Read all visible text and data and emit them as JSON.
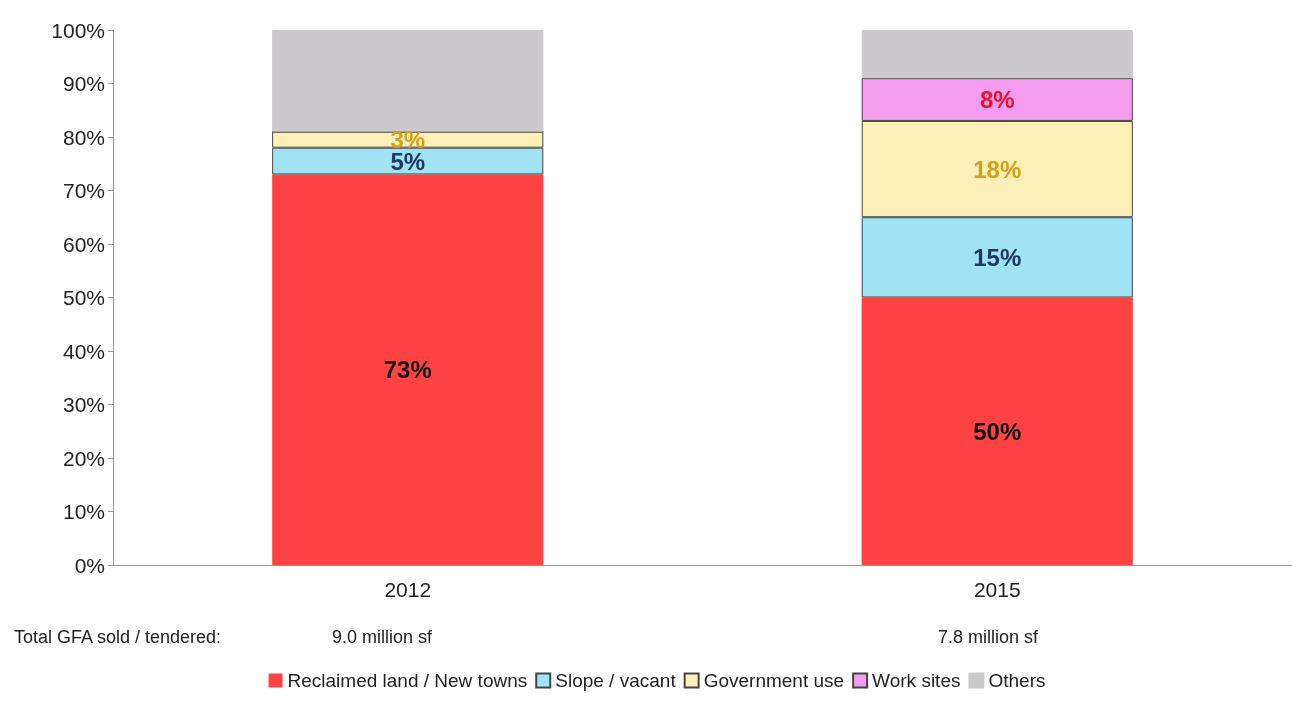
{
  "chart_data": {
    "type": "bar",
    "stacked": true,
    "categories": [
      "2012",
      "2015"
    ],
    "series": [
      {
        "name": "Reclaimed land / New towns",
        "color": "#ff4343",
        "values": [
          73,
          50
        ],
        "value_labels": [
          "73%",
          "50%"
        ]
      },
      {
        "name": "Slope / vacant",
        "color": "#9fe3f5",
        "values": [
          5,
          15
        ],
        "value_labels": [
          "5%",
          "15%"
        ]
      },
      {
        "name": "Government use",
        "color": "#fff0b8",
        "values": [
          3,
          18
        ],
        "value_labels": [
          "3%",
          "18%"
        ]
      },
      {
        "name": "Work sites",
        "color": "#f49cf0",
        "values": [
          0,
          8
        ],
        "value_labels": [
          null,
          "8%"
        ]
      },
      {
        "name": "Others",
        "color": "#cbc9cb",
        "values": [
          19,
          9
        ],
        "value_labels": [
          null,
          null
        ]
      }
    ],
    "ylim": [
      0,
      100
    ],
    "yticks": [
      {
        "value": 0,
        "label": "0%"
      },
      {
        "value": 10,
        "label": "10%"
      },
      {
        "value": 20,
        "label": "20%"
      },
      {
        "value": 30,
        "label": "30%"
      },
      {
        "value": 40,
        "label": "40%"
      },
      {
        "value": 50,
        "label": "50%"
      },
      {
        "value": 60,
        "label": "60%"
      },
      {
        "value": 70,
        "label": "70%"
      },
      {
        "value": 80,
        "label": "80%"
      },
      {
        "value": 90,
        "label": "90%"
      },
      {
        "value": 100,
        "label": "100%"
      }
    ],
    "grid": false,
    "legend": "bottom",
    "annotations": [
      "Total GFA sold / tendered:",
      "9.0 million sf",
      "7.8 million sf"
    ]
  }
}
